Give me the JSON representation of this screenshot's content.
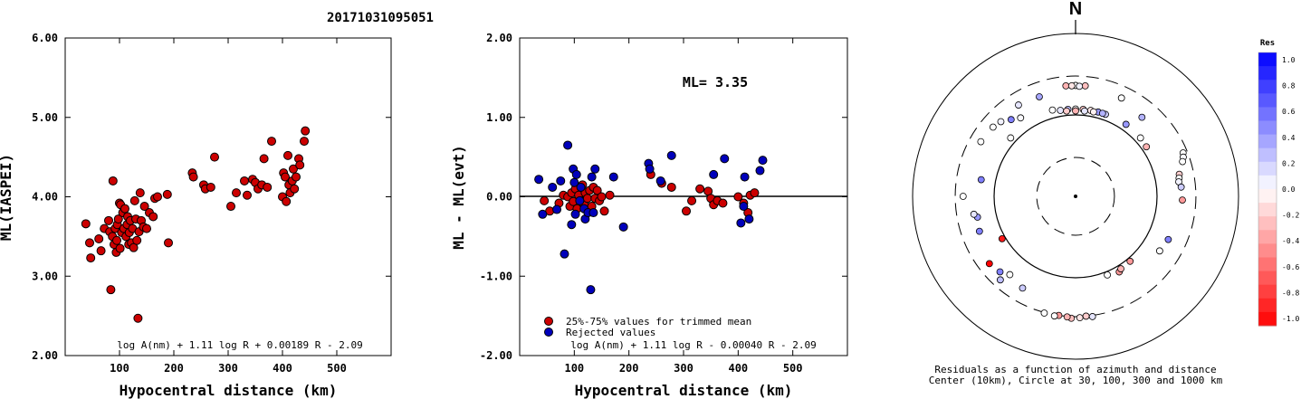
{
  "page_title": "20171031095051",
  "chart_data": [
    {
      "type": "scatter",
      "name": "ml-vs-distance",
      "xlabel": "Hypocentral distance (km)",
      "ylabel": "ML(IASPEI)",
      "xlim": [
        0,
        600
      ],
      "ylim": [
        2.0,
        6.0
      ],
      "x_ticks": [
        "100",
        "200",
        "300",
        "400",
        "500"
      ],
      "y_ticks": [
        "2.00",
        "3.00",
        "4.00",
        "5.00",
        "6.00"
      ],
      "formula": "log A(nm) + 1.11 log R + 0.00189 R - 2.09",
      "point_color": "#cc0000",
      "points": [
        [
          38,
          3.66
        ],
        [
          45,
          3.42
        ],
        [
          47,
          3.23
        ],
        [
          62,
          3.47
        ],
        [
          66,
          3.32
        ],
        [
          72,
          3.6
        ],
        [
          80,
          3.7
        ],
        [
          82,
          3.56
        ],
        [
          84,
          2.83
        ],
        [
          87,
          3.5
        ],
        [
          88,
          4.2
        ],
        [
          90,
          3.4
        ],
        [
          92,
          3.6
        ],
        [
          94,
          3.3
        ],
        [
          95,
          3.45
        ],
        [
          96,
          3.65
        ],
        [
          98,
          3.72
        ],
        [
          100,
          3.92
        ],
        [
          101,
          3.35
        ],
        [
          102,
          3.9
        ],
        [
          104,
          3.55
        ],
        [
          106,
          3.8
        ],
        [
          108,
          3.6
        ],
        [
          110,
          3.85
        ],
        [
          112,
          3.5
        ],
        [
          114,
          3.65
        ],
        [
          115,
          3.75
        ],
        [
          117,
          3.4
        ],
        [
          118,
          3.55
        ],
        [
          120,
          3.7
        ],
        [
          122,
          3.42
        ],
        [
          124,
          3.6
        ],
        [
          126,
          3.36
        ],
        [
          128,
          3.95
        ],
        [
          130,
          3.72
        ],
        [
          132,
          3.45
        ],
        [
          134,
          2.47
        ],
        [
          136,
          3.56
        ],
        [
          138,
          4.05
        ],
        [
          140,
          3.7
        ],
        [
          144,
          3.62
        ],
        [
          146,
          3.88
        ],
        [
          150,
          3.6
        ],
        [
          155,
          3.8
        ],
        [
          162,
          3.75
        ],
        [
          165,
          3.98
        ],
        [
          170,
          4.0
        ],
        [
          188,
          4.03
        ],
        [
          190,
          3.42
        ],
        [
          234,
          4.3
        ],
        [
          236,
          4.25
        ],
        [
          255,
          4.15
        ],
        [
          258,
          4.1
        ],
        [
          268,
          4.12
        ],
        [
          275,
          4.5
        ],
        [
          305,
          3.88
        ],
        [
          315,
          4.05
        ],
        [
          330,
          4.2
        ],
        [
          335,
          4.02
        ],
        [
          345,
          4.22
        ],
        [
          350,
          4.18
        ],
        [
          355,
          4.1
        ],
        [
          362,
          4.15
        ],
        [
          366,
          4.48
        ],
        [
          372,
          4.12
        ],
        [
          380,
          4.7
        ],
        [
          400,
          4.0
        ],
        [
          402,
          4.3
        ],
        [
          405,
          4.25
        ],
        [
          407,
          3.94
        ],
        [
          410,
          4.52
        ],
        [
          412,
          4.15
        ],
        [
          414,
          4.05
        ],
        [
          418,
          4.2
        ],
        [
          420,
          4.35
        ],
        [
          422,
          4.1
        ],
        [
          425,
          4.25
        ],
        [
          430,
          4.48
        ],
        [
          432,
          4.4
        ],
        [
          440,
          4.7
        ],
        [
          442,
          4.83
        ]
      ]
    },
    {
      "type": "scatter",
      "name": "residual-vs-distance",
      "xlabel": "Hypocentral distance (km)",
      "ylabel": "ML - ML(evt)",
      "xlim": [
        0,
        600
      ],
      "ylim": [
        -2.0,
        2.0
      ],
      "x_ticks": [
        "100",
        "200",
        "300",
        "400",
        "500"
      ],
      "y_ticks": [
        "-2.00",
        "-1.00",
        "0.00",
        "1.00",
        "2.00"
      ],
      "ml_label": "ML= 3.35",
      "formula": "log A(nm) + 1.11 log R - 0.00040 R - 2.09",
      "legend": {
        "trimmed": "25%-75% values for trimmed mean",
        "rejected": "Rejected values"
      },
      "series": [
        {
          "name": "25%-75% values for trimmed mean",
          "color": "#cc0000",
          "points": [
            [
              45,
              -0.05
            ],
            [
              55,
              -0.18
            ],
            [
              72,
              -0.08
            ],
            [
              80,
              0.02
            ],
            [
              88,
              0.0
            ],
            [
              92,
              -0.12
            ],
            [
              95,
              0.05
            ],
            [
              98,
              -0.06
            ],
            [
              102,
              0.1
            ],
            [
              105,
              -0.15
            ],
            [
              108,
              0.02
            ],
            [
              112,
              -0.05
            ],
            [
              115,
              0.15
            ],
            [
              118,
              -0.1
            ],
            [
              120,
              0.05
            ],
            [
              124,
              -0.02
            ],
            [
              128,
              0.08
            ],
            [
              132,
              -0.12
            ],
            [
              135,
              0.12
            ],
            [
              138,
              -0.02
            ],
            [
              142,
              0.08
            ],
            [
              146,
              -0.05
            ],
            [
              150,
              0.0
            ],
            [
              155,
              -0.18
            ],
            [
              165,
              0.02
            ],
            [
              240,
              0.28
            ],
            [
              260,
              0.17
            ],
            [
              278,
              0.12
            ],
            [
              305,
              -0.18
            ],
            [
              315,
              -0.05
            ],
            [
              330,
              0.1
            ],
            [
              345,
              0.07
            ],
            [
              350,
              -0.02
            ],
            [
              355,
              -0.1
            ],
            [
              362,
              -0.05
            ],
            [
              372,
              -0.08
            ],
            [
              400,
              0.0
            ],
            [
              410,
              -0.08
            ],
            [
              418,
              -0.2
            ],
            [
              422,
              0.02
            ],
            [
              430,
              0.05
            ]
          ]
        },
        {
          "name": "Rejected values",
          "color": "#0000bb",
          "points": [
            [
              35,
              0.22
            ],
            [
              42,
              -0.22
            ],
            [
              60,
              0.12
            ],
            [
              68,
              -0.16
            ],
            [
              75,
              0.2
            ],
            [
              82,
              -0.72
            ],
            [
              88,
              0.65
            ],
            [
              95,
              -0.35
            ],
            [
              98,
              0.35
            ],
            [
              100,
              0.18
            ],
            [
              102,
              -0.22
            ],
            [
              104,
              0.28
            ],
            [
              110,
              -0.05
            ],
            [
              112,
              0.12
            ],
            [
              118,
              -0.15
            ],
            [
              120,
              -0.28
            ],
            [
              125,
              -0.2
            ],
            [
              130,
              -1.17
            ],
            [
              132,
              0.25
            ],
            [
              135,
              -0.2
            ],
            [
              138,
              0.35
            ],
            [
              172,
              0.25
            ],
            [
              190,
              -0.38
            ],
            [
              236,
              0.42
            ],
            [
              238,
              0.35
            ],
            [
              258,
              0.2
            ],
            [
              278,
              0.52
            ],
            [
              355,
              0.28
            ],
            [
              375,
              0.48
            ],
            [
              405,
              -0.33
            ],
            [
              410,
              -0.12
            ],
            [
              412,
              0.25
            ],
            [
              420,
              -0.28
            ],
            [
              440,
              0.33
            ],
            [
              445,
              0.46
            ]
          ]
        }
      ]
    },
    {
      "type": "scatter",
      "name": "azimuth-residual-map",
      "north_label": "N",
      "caption_line1": "Residuals as a function of azimuth and distance",
      "caption_line2": "Center (10km), Circle at 30, 100, 300 and 1000 km",
      "colorbar_title": "Res",
      "colorbar_ticks": [
        "1.0",
        "0.8",
        "0.6",
        "0.4",
        "0.2",
        "0.0",
        "-0.2",
        "-0.4",
        "-0.6",
        "-0.8",
        "-1.0"
      ],
      "colorbar_range": [
        -1.0,
        1.0
      ],
      "stations_azimuth_deg_distance_km_residual": [
        [
          0,
          230,
          0.0
        ],
        [
          5,
          230,
          -0.25
        ],
        [
          -5,
          230,
          -0.3
        ],
        [
          2,
          225,
          0.05
        ],
        [
          -2,
          228,
          -0.1
        ],
        [
          -32,
          210,
          0.1
        ],
        [
          -20,
          200,
          0.35
        ],
        [
          25,
          215,
          0.0
        ],
        [
          40,
          185,
          0.3
        ],
        [
          -40,
          170,
          0.5
        ],
        [
          -35,
          150,
          0.02
        ],
        [
          -15,
          125,
          0.0
        ],
        [
          -10,
          118,
          0.1
        ],
        [
          -5,
          118,
          0.25
        ],
        [
          0,
          118,
          0.0
        ],
        [
          5,
          118,
          -0.2
        ],
        [
          10,
          118,
          -0.1
        ],
        [
          15,
          118,
          0.4
        ],
        [
          20,
          118,
          0.2
        ],
        [
          -6,
          113,
          -0.2
        ],
        [
          0,
          112,
          -0.3
        ],
        [
          6,
          113,
          0.1
        ],
        [
          12,
          115,
          -0.05
        ],
        [
          18,
          118,
          0.3
        ],
        [
          35,
          120,
          0.4
        ],
        [
          48,
          118,
          0.0
        ],
        [
          55,
          115,
          -0.3
        ],
        [
          -48,
          118,
          0.0
        ],
        [
          68,
          265,
          0.0
        ],
        [
          70,
          255,
          0.02
        ],
        [
          72,
          240,
          0.0
        ],
        [
          78,
          200,
          -0.2
        ],
        [
          80,
          195,
          0.0
        ],
        [
          82,
          190,
          0.05
        ],
        [
          85,
          200,
          0.2
        ],
        [
          92,
          205,
          -0.4
        ],
        [
          115,
          180,
          0.5
        ],
        [
          123,
          170,
          0.0
        ],
        [
          140,
          110,
          -0.4
        ],
        [
          150,
          118,
          -0.4
        ],
        [
          148,
          112,
          -0.3
        ],
        [
          158,
          110,
          0.0
        ],
        [
          172,
          310,
          0.1
        ],
        [
          175,
          300,
          -0.2
        ],
        [
          178,
          310,
          -0.1
        ],
        [
          182,
          315,
          -0.25
        ],
        [
          184,
          305,
          -0.3
        ],
        [
          188,
          300,
          -0.4
        ],
        [
          190,
          310,
          0.0
        ],
        [
          195,
          305,
          0.0
        ],
        [
          210,
          200,
          0.2
        ],
        [
          220,
          180,
          0.0
        ],
        [
          225,
          205,
          0.5
        ],
        [
          222,
          240,
          0.25
        ],
        [
          232,
          220,
          -1.0
        ],
        [
          240,
          110,
          -0.9
        ],
        [
          250,
          180,
          0.5
        ],
        [
          258,
          170,
          0.4
        ],
        [
          260,
          185,
          0.1
        ],
        [
          270,
          240,
          0.0
        ],
        [
          280,
          150,
          0.5
        ],
        [
          300,
          220,
          0.0
        ],
        [
          310,
          210,
          0.0
        ],
        [
          315,
          198,
          0.05
        ]
      ]
    }
  ]
}
